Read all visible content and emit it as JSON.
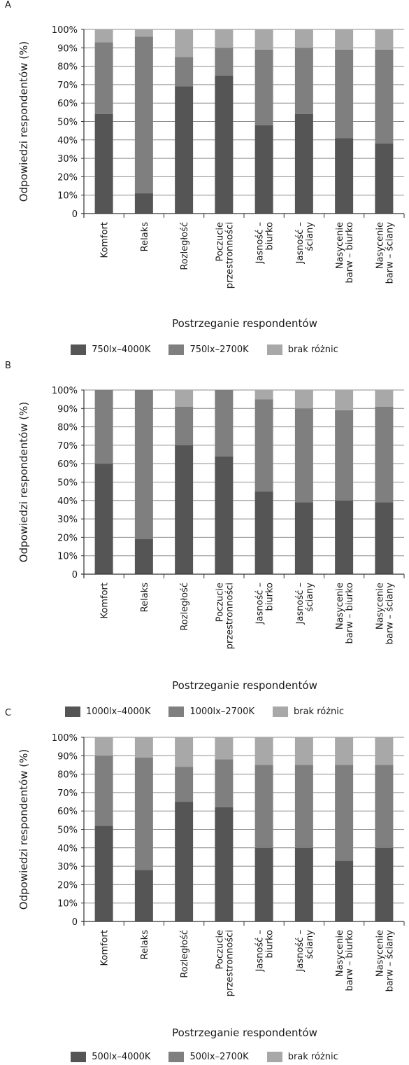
{
  "chart_data": [
    {
      "type": "bar",
      "stacked": true,
      "panel_label": "A",
      "ylabel": "Odpowiedzi respondentów (%)",
      "xlabel": "Postrzeganie respondentów",
      "ylim": [
        0,
        100
      ],
      "yticks": [
        "0",
        "10%",
        "20%",
        "30%",
        "40%",
        "50%",
        "60%",
        "70%",
        "80%",
        "90%",
        "100%"
      ],
      "grid": true,
      "legend_position": "bottom",
      "categories": [
        "Komfort",
        "Relaks",
        "Rozległość",
        "Poczucie przestronności",
        "Jasność – biurko",
        "Jasność – ściany",
        "Nasycenie barw – biurko",
        "Nasycenie barw – ściany"
      ],
      "series": [
        {
          "name": "750lx–4000K",
          "color": "#555555",
          "values": [
            54,
            11,
            69,
            75,
            48,
            54,
            41,
            38
          ]
        },
        {
          "name": "750lx–2700K",
          "color": "#7f7f7f",
          "values": [
            39,
            85,
            16,
            15,
            41,
            36,
            48,
            51
          ]
        },
        {
          "name": "brak różnic",
          "color": "#a8a8a8",
          "values": [
            7,
            4,
            15,
            10,
            11,
            10,
            11,
            11
          ]
        }
      ]
    },
    {
      "type": "bar",
      "stacked": true,
      "panel_label": "B",
      "ylabel": "Odpowiedzi respondentów (%)",
      "xlabel": "Postrzeganie respondentów",
      "ylim": [
        0,
        100
      ],
      "yticks": [
        "0",
        "10%",
        "20%",
        "30%",
        "40%",
        "50%",
        "60%",
        "70%",
        "80%",
        "90%",
        "100%"
      ],
      "grid": true,
      "legend_position": "bottom",
      "categories": [
        "Komfort",
        "Relaks",
        "Rozległość",
        "Poczucie przestronności",
        "Jasność – biurko",
        "Jasność – ściany",
        "Nasycenie barw – biurko",
        "Nasycenie barw – ściany"
      ],
      "series": [
        {
          "name": "1000lx–4000K",
          "color": "#555555",
          "values": [
            60,
            19,
            70,
            64,
            45,
            39,
            40,
            39
          ]
        },
        {
          "name": "1000lx–2700K",
          "color": "#7f7f7f",
          "values": [
            40,
            81,
            21,
            36,
            50,
            51,
            49,
            52
          ]
        },
        {
          "name": "brak różnic",
          "color": "#a8a8a8",
          "values": [
            0,
            0,
            9,
            0,
            5,
            10,
            11,
            9
          ]
        }
      ]
    },
    {
      "type": "bar",
      "stacked": true,
      "panel_label": "C",
      "ylabel": "Odpowiedzi respondentów (%)",
      "xlabel": "Postrzeganie respondentów",
      "ylim": [
        0,
        100
      ],
      "yticks": [
        "0",
        "10%",
        "20%",
        "30%",
        "40%",
        "50%",
        "60%",
        "70%",
        "80%",
        "90%",
        "100%"
      ],
      "grid": true,
      "legend_position": "bottom",
      "categories": [
        "Komfort",
        "Relaks",
        "Rozległość",
        "Poczucie przestronności",
        "Jasność – biurko",
        "Jasność – ściany",
        "Nasycenie barw – biurko",
        "Nasycenie barw – ściany"
      ],
      "series": [
        {
          "name": "500lx–4000K",
          "color": "#555555",
          "values": [
            52,
            28,
            65,
            62,
            40,
            40,
            33,
            40
          ]
        },
        {
          "name": "500lx–2700K",
          "color": "#7f7f7f",
          "values": [
            38,
            61,
            19,
            26,
            45,
            45,
            52,
            45
          ]
        },
        {
          "name": "brak różnic",
          "color": "#a8a8a8",
          "values": [
            10,
            11,
            16,
            12,
            15,
            15,
            15,
            15
          ]
        }
      ]
    }
  ]
}
